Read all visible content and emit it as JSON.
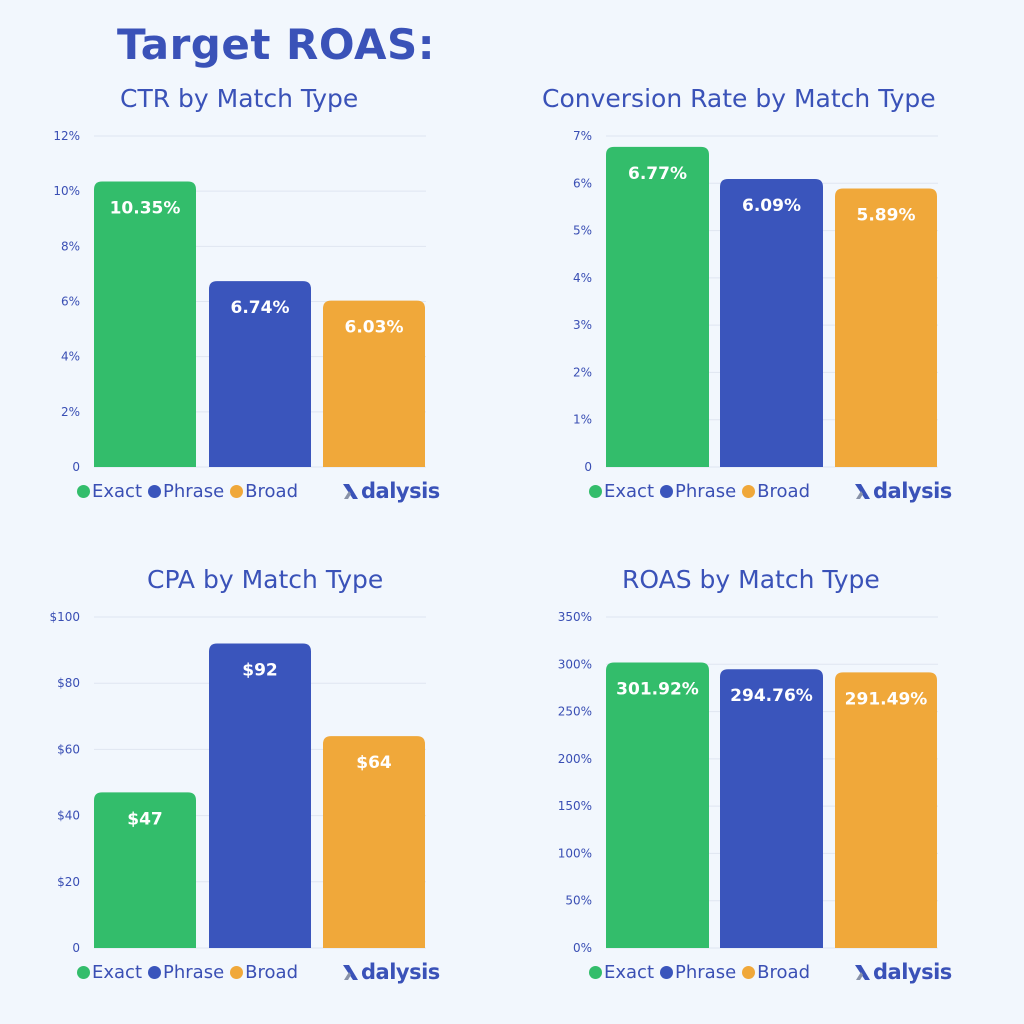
{
  "header": {
    "title": "Target ROAS:"
  },
  "colors": {
    "exact": "#33bd6b",
    "phrase": "#3a55bc",
    "broad": "#f0a83a",
    "text": "#3a52b8",
    "grid": "#dfe6f1",
    "background": "#f2f7fd"
  },
  "legend": [
    {
      "label": "Exact",
      "color": "#33bd6b"
    },
    {
      "label": "Phrase",
      "color": "#3a55bc"
    },
    {
      "label": "Broad",
      "color": "#f0a83a"
    }
  ],
  "brand": {
    "logo_text": "dalysis",
    "logo_icon": "adalysis-a-icon"
  },
  "chart_data": [
    {
      "type": "bar",
      "title": "CTR by Match Type",
      "categories": [
        "Exact",
        "Phrase",
        "Broad"
      ],
      "values": [
        10.35,
        6.74,
        6.03
      ],
      "value_labels": [
        "10.35%",
        "6.74%",
        "6.03%"
      ],
      "yticks": [
        0,
        2,
        4,
        6,
        8,
        10,
        12
      ],
      "ytick_labels": [
        "0",
        "2%",
        "4%",
        "6%",
        "8%",
        "10%",
        "12%"
      ],
      "ylim": [
        0,
        12
      ],
      "xlabel": "",
      "ylabel": "",
      "grid": true,
      "legend_position": "bottom-left"
    },
    {
      "type": "bar",
      "title": "Conversion Rate by Match Type",
      "categories": [
        "Exact",
        "Phrase",
        "Broad"
      ],
      "values": [
        6.77,
        6.09,
        5.89
      ],
      "value_labels": [
        "6.77%",
        "6.09%",
        "5.89%"
      ],
      "yticks": [
        0,
        1,
        2,
        3,
        4,
        5,
        6,
        7
      ],
      "ytick_labels": [
        "0",
        "1%",
        "2%",
        "3%",
        "4%",
        "5%",
        "6%",
        "7%"
      ],
      "ylim": [
        0,
        7
      ],
      "xlabel": "",
      "ylabel": "",
      "grid": true,
      "legend_position": "bottom-left"
    },
    {
      "type": "bar",
      "title": "CPA by Match Type",
      "categories": [
        "Exact",
        "Phrase",
        "Broad"
      ],
      "values": [
        47,
        92,
        64
      ],
      "value_labels": [
        "$47",
        "$92",
        "$64"
      ],
      "yticks": [
        0,
        20,
        40,
        60,
        80,
        100
      ],
      "ytick_labels": [
        "0",
        "$20",
        "$40",
        "$60",
        "$80",
        "$100"
      ],
      "ylim": [
        0,
        100
      ],
      "xlabel": "",
      "ylabel": "",
      "grid": true,
      "legend_position": "bottom-left"
    },
    {
      "type": "bar",
      "title": "ROAS by Match Type",
      "categories": [
        "Exact",
        "Phrase",
        "Broad"
      ],
      "values": [
        301.92,
        294.76,
        291.49
      ],
      "value_labels": [
        "301.92%",
        "294.76%",
        "291.49%"
      ],
      "yticks": [
        0,
        50,
        100,
        150,
        200,
        250,
        300,
        350
      ],
      "ytick_labels": [
        "0%",
        "50%",
        "100%",
        "150%",
        "200%",
        "250%",
        "300%",
        "350%"
      ],
      "ylim": [
        0,
        350
      ],
      "xlabel": "",
      "ylabel": "",
      "grid": true,
      "legend_position": "bottom-left"
    }
  ]
}
